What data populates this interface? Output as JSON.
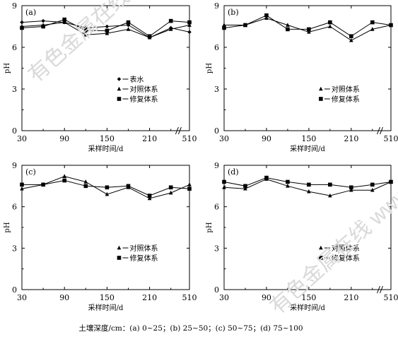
{
  "chart_data": [
    {
      "panel": "(a)",
      "type": "line",
      "xlabel": "采样时间/d",
      "ylabel": "pH",
      "ylim": [
        0,
        9
      ],
      "yticks": [
        0,
        3,
        6,
        9
      ],
      "xtick_labels": [
        "30",
        "90",
        "150",
        "210",
        "510"
      ],
      "x_break": true,
      "x": [
        30,
        60,
        90,
        120,
        150,
        180,
        210,
        240,
        510
      ],
      "series": [
        {
          "name": "表水",
          "marker": "diamond",
          "values": [
            7.8,
            7.9,
            7.8,
            7.4,
            7.5,
            7.6,
            6.7,
            7.4,
            7.1
          ]
        },
        {
          "name": "对照体系",
          "marker": "triangle",
          "values": [
            7.5,
            7.6,
            7.8,
            6.9,
            7.0,
            7.3,
            6.7,
            7.3,
            7.6
          ]
        },
        {
          "name": "修复体系",
          "marker": "square",
          "values": [
            7.4,
            7.5,
            8.0,
            7.2,
            7.2,
            7.8,
            6.8,
            7.9,
            7.8
          ]
        }
      ]
    },
    {
      "panel": "(b)",
      "type": "line",
      "xlabel": "采样时间/d",
      "ylabel": "pH",
      "ylim": [
        0,
        9
      ],
      "yticks": [
        0,
        3,
        6,
        9
      ],
      "xtick_labels": [
        "30",
        "90",
        "150",
        "210",
        "510"
      ],
      "x_break": true,
      "x": [
        30,
        60,
        90,
        120,
        150,
        180,
        210,
        240,
        510
      ],
      "series": [
        {
          "name": "对照体系",
          "marker": "triangle",
          "values": [
            7.6,
            7.6,
            8.1,
            7.6,
            7.1,
            7.5,
            6.5,
            7.3,
            7.6
          ]
        },
        {
          "name": "修复体系",
          "marker": "square",
          "values": [
            7.4,
            7.6,
            8.3,
            7.3,
            7.3,
            7.8,
            6.8,
            7.8,
            7.6
          ]
        }
      ]
    },
    {
      "panel": "(c)",
      "type": "line",
      "xlabel": "采样时间/d",
      "ylabel": "pH",
      "ylim": [
        0,
        9
      ],
      "yticks": [
        0,
        3,
        6,
        9
      ],
      "xtick_labels": [
        "30",
        "90",
        "150",
        "210",
        "510"
      ],
      "x_break": false,
      "x": [
        30,
        60,
        90,
        120,
        150,
        180,
        210,
        240,
        510
      ],
      "series": [
        {
          "name": "对照体系",
          "marker": "triangle",
          "values": [
            7.3,
            7.6,
            8.2,
            7.8,
            6.9,
            7.4,
            6.6,
            7.0,
            7.6
          ]
        },
        {
          "name": "修复体系",
          "marker": "square",
          "values": [
            7.6,
            7.6,
            7.9,
            7.5,
            7.4,
            7.5,
            6.8,
            7.4,
            7.3
          ]
        }
      ]
    },
    {
      "panel": "(d)",
      "type": "line",
      "xlabel": "采样时间/d",
      "ylabel": "pH",
      "ylim": [
        0,
        9
      ],
      "yticks": [
        0,
        3,
        6,
        9
      ],
      "xtick_labels": [
        "30",
        "90",
        "150",
        "210",
        "510"
      ],
      "x_break": true,
      "x": [
        30,
        60,
        90,
        120,
        150,
        180,
        210,
        240,
        510
      ],
      "series": [
        {
          "name": "对照体系",
          "marker": "triangle",
          "values": [
            7.4,
            7.3,
            8.0,
            7.5,
            7.1,
            6.8,
            7.2,
            7.2,
            7.8
          ]
        },
        {
          "name": "修复体系",
          "marker": "square",
          "values": [
            7.8,
            7.5,
            8.1,
            7.8,
            7.6,
            7.6,
            7.4,
            7.6,
            7.8
          ]
        }
      ]
    }
  ],
  "caption": "土壤深度/cm：(a) 0~25；(b) 25~50；(c) 50~75；(d) 75~100",
  "watermark": "有色金属在线 www.cnnmol.com",
  "colors": {
    "line": "#000000",
    "background": "#ffffff",
    "watermark": "#d0d0d0"
  }
}
